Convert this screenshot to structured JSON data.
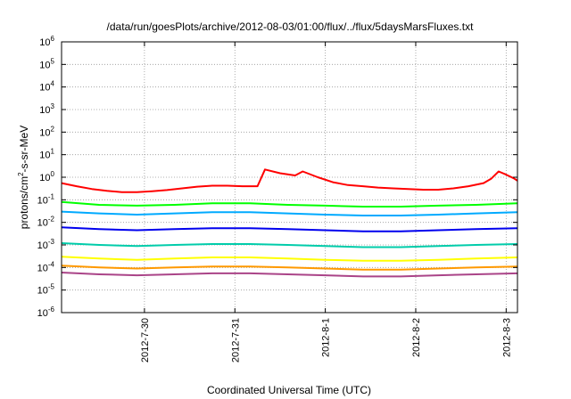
{
  "chart_data": {
    "type": "line",
    "title": "/data/run/goesPlots/archive/2012-08-03/01:00/flux/../flux/5daysMarsFluxes.txt",
    "xlabel": "Coordinated Universal Time (UTC)",
    "ylabel": {
      "prefix": "protons/cm",
      "sup": "2",
      "suffix": "-s-sr-MeV"
    },
    "yscale": "log",
    "ylim": [
      1e-06,
      1000000.0
    ],
    "ytick_labels": [
      {
        "value": 1e-06,
        "base": "10",
        "exp": "-6"
      },
      {
        "value": 1e-05,
        "base": "10",
        "exp": "-5"
      },
      {
        "value": 0.0001,
        "base": "10",
        "exp": "-4"
      },
      {
        "value": 0.001,
        "base": "10",
        "exp": "-3"
      },
      {
        "value": 0.01,
        "base": "10",
        "exp": "-2"
      },
      {
        "value": 0.1,
        "base": "10",
        "exp": "-1"
      },
      {
        "value": 1,
        "base": "10",
        "exp": "0"
      },
      {
        "value": 10,
        "base": "10",
        "exp": "1"
      },
      {
        "value": 100,
        "base": "10",
        "exp": "2"
      },
      {
        "value": 1000,
        "base": "10",
        "exp": "3"
      },
      {
        "value": 10000,
        "base": "10",
        "exp": "4"
      },
      {
        "value": 100000,
        "base": "10",
        "exp": "5"
      },
      {
        "value": 1000000,
        "base": "10",
        "exp": "6"
      }
    ],
    "xlim": [
      "2012-07-29T02:00",
      "2012-08-03T03:00"
    ],
    "xticks": [
      "2012-07-30",
      "2012-07-31",
      "2012-08-01",
      "2012-08-02",
      "2012-08-03"
    ],
    "xtick_labels": [
      "2012-7-30",
      "2012-7-31",
      "2012-8-1",
      "2012-8-2",
      "2012-8-3"
    ],
    "grid": true,
    "series": [
      {
        "color": "#ff0000",
        "points": [
          [
            "2012-07-29T02:00",
            0.55
          ],
          [
            "2012-07-29T06:00",
            0.4
          ],
          [
            "2012-07-29T10:00",
            0.3
          ],
          [
            "2012-07-29T14:00",
            0.25
          ],
          [
            "2012-07-29T18:00",
            0.22
          ],
          [
            "2012-07-29T22:00",
            0.22
          ],
          [
            "2012-07-30T02:00",
            0.24
          ],
          [
            "2012-07-30T06:00",
            0.27
          ],
          [
            "2012-07-30T10:00",
            0.32
          ],
          [
            "2012-07-30T14:00",
            0.38
          ],
          [
            "2012-07-30T18:00",
            0.42
          ],
          [
            "2012-07-30T22:00",
            0.42
          ],
          [
            "2012-07-31T02:00",
            0.4
          ],
          [
            "2012-07-31T06:00",
            0.4
          ],
          [
            "2012-07-31T08:00",
            2.2
          ],
          [
            "2012-07-31T12:00",
            1.5
          ],
          [
            "2012-07-31T16:00",
            1.2
          ],
          [
            "2012-07-31T18:00",
            1.8
          ],
          [
            "2012-07-31T22:00",
            1.0
          ],
          [
            "2012-08-01T02:00",
            0.6
          ],
          [
            "2012-08-01T06:00",
            0.45
          ],
          [
            "2012-08-01T10:00",
            0.4
          ],
          [
            "2012-08-01T14:00",
            0.35
          ],
          [
            "2012-08-01T18:00",
            0.32
          ],
          [
            "2012-08-01T22:00",
            0.3
          ],
          [
            "2012-08-02T02:00",
            0.28
          ],
          [
            "2012-08-02T06:00",
            0.28
          ],
          [
            "2012-08-02T10:00",
            0.32
          ],
          [
            "2012-08-02T14:00",
            0.4
          ],
          [
            "2012-08-02T18:00",
            0.55
          ],
          [
            "2012-08-02T20:00",
            0.85
          ],
          [
            "2012-08-02T22:00",
            1.8
          ],
          [
            "2012-08-03T00:00",
            1.3
          ],
          [
            "2012-08-03T02:00",
            0.9
          ],
          [
            "2012-08-03T03:00",
            0.7
          ]
        ]
      },
      {
        "color": "#00ff00",
        "points": [
          [
            "2012-07-29T02:00",
            0.08
          ],
          [
            "2012-07-29T12:00",
            0.06
          ],
          [
            "2012-07-29T22:00",
            0.055
          ],
          [
            "2012-07-30T08:00",
            0.06
          ],
          [
            "2012-07-30T18:00",
            0.07
          ],
          [
            "2012-07-31T04:00",
            0.07
          ],
          [
            "2012-07-31T14:00",
            0.06
          ],
          [
            "2012-08-01T00:00",
            0.055
          ],
          [
            "2012-08-01T10:00",
            0.05
          ],
          [
            "2012-08-01T20:00",
            0.05
          ],
          [
            "2012-08-02T06:00",
            0.055
          ],
          [
            "2012-08-02T16:00",
            0.06
          ],
          [
            "2012-08-03T03:00",
            0.07
          ]
        ]
      },
      {
        "color": "#00aaff",
        "points": [
          [
            "2012-07-29T02:00",
            0.03
          ],
          [
            "2012-07-29T12:00",
            0.025
          ],
          [
            "2012-07-29T22:00",
            0.022
          ],
          [
            "2012-07-30T08:00",
            0.025
          ],
          [
            "2012-07-30T18:00",
            0.028
          ],
          [
            "2012-07-31T04:00",
            0.028
          ],
          [
            "2012-07-31T14:00",
            0.025
          ],
          [
            "2012-08-01T00:00",
            0.022
          ],
          [
            "2012-08-01T10:00",
            0.02
          ],
          [
            "2012-08-01T20:00",
            0.02
          ],
          [
            "2012-08-02T06:00",
            0.022
          ],
          [
            "2012-08-02T16:00",
            0.025
          ],
          [
            "2012-08-03T03:00",
            0.028
          ]
        ]
      },
      {
        "color": "#0000ee",
        "points": [
          [
            "2012-07-29T02:00",
            0.006
          ],
          [
            "2012-07-29T12:00",
            0.005
          ],
          [
            "2012-07-29T22:00",
            0.0045
          ],
          [
            "2012-07-30T08:00",
            0.005
          ],
          [
            "2012-07-30T18:00",
            0.0055
          ],
          [
            "2012-07-31T04:00",
            0.0055
          ],
          [
            "2012-07-31T14:00",
            0.005
          ],
          [
            "2012-08-01T00:00",
            0.0045
          ],
          [
            "2012-08-01T10:00",
            0.004
          ],
          [
            "2012-08-01T20:00",
            0.004
          ],
          [
            "2012-08-02T06:00",
            0.0045
          ],
          [
            "2012-08-02T16:00",
            0.005
          ],
          [
            "2012-08-03T03:00",
            0.0055
          ]
        ]
      },
      {
        "color": "#00ccaa",
        "points": [
          [
            "2012-07-29T02:00",
            0.0012
          ],
          [
            "2012-07-29T12:00",
            0.001
          ],
          [
            "2012-07-29T22:00",
            0.0009
          ],
          [
            "2012-07-30T08:00",
            0.001
          ],
          [
            "2012-07-30T18:00",
            0.0011
          ],
          [
            "2012-07-31T04:00",
            0.0011
          ],
          [
            "2012-07-31T14:00",
            0.001
          ],
          [
            "2012-08-01T00:00",
            0.0009
          ],
          [
            "2012-08-01T10:00",
            0.0008
          ],
          [
            "2012-08-01T20:00",
            0.0008
          ],
          [
            "2012-08-02T06:00",
            0.0009
          ],
          [
            "2012-08-02T16:00",
            0.001
          ],
          [
            "2012-08-03T03:00",
            0.0011
          ]
        ]
      },
      {
        "color": "#ffff00",
        "points": [
          [
            "2012-07-29T02:00",
            0.0003
          ],
          [
            "2012-07-29T12:00",
            0.00025
          ],
          [
            "2012-07-29T22:00",
            0.00022
          ],
          [
            "2012-07-30T08:00",
            0.00025
          ],
          [
            "2012-07-30T18:00",
            0.00028
          ],
          [
            "2012-07-31T04:00",
            0.00028
          ],
          [
            "2012-07-31T14:00",
            0.00025
          ],
          [
            "2012-08-01T00:00",
            0.00022
          ],
          [
            "2012-08-01T10:00",
            0.0002
          ],
          [
            "2012-08-01T20:00",
            0.0002
          ],
          [
            "2012-08-02T06:00",
            0.00022
          ],
          [
            "2012-08-02T16:00",
            0.00025
          ],
          [
            "2012-08-03T03:00",
            0.00028
          ]
        ]
      },
      {
        "color": "#ff9900",
        "points": [
          [
            "2012-07-29T02:00",
            0.00012
          ],
          [
            "2012-07-29T12:00",
            0.0001
          ],
          [
            "2012-07-29T22:00",
            9e-05
          ],
          [
            "2012-07-30T08:00",
            0.0001
          ],
          [
            "2012-07-30T18:00",
            0.00011
          ],
          [
            "2012-07-31T04:00",
            0.00011
          ],
          [
            "2012-07-31T14:00",
            0.0001
          ],
          [
            "2012-08-01T00:00",
            9e-05
          ],
          [
            "2012-08-01T10:00",
            8e-05
          ],
          [
            "2012-08-01T20:00",
            8e-05
          ],
          [
            "2012-08-02T06:00",
            9e-05
          ],
          [
            "2012-08-02T16:00",
            0.0001
          ],
          [
            "2012-08-03T03:00",
            0.00011
          ]
        ]
      },
      {
        "color": "#aa4488",
        "points": [
          [
            "2012-07-29T02:00",
            6e-05
          ],
          [
            "2012-07-29T12:00",
            5e-05
          ],
          [
            "2012-07-29T22:00",
            4.5e-05
          ],
          [
            "2012-07-30T08:00",
            5e-05
          ],
          [
            "2012-07-30T18:00",
            5.5e-05
          ],
          [
            "2012-07-31T04:00",
            5.5e-05
          ],
          [
            "2012-07-31T14:00",
            5e-05
          ],
          [
            "2012-08-01T00:00",
            4.5e-05
          ],
          [
            "2012-08-01T10:00",
            4e-05
          ],
          [
            "2012-08-01T20:00",
            4e-05
          ],
          [
            "2012-08-02T06:00",
            4.5e-05
          ],
          [
            "2012-08-02T16:00",
            5e-05
          ],
          [
            "2012-08-03T03:00",
            5.5e-05
          ]
        ]
      }
    ]
  }
}
